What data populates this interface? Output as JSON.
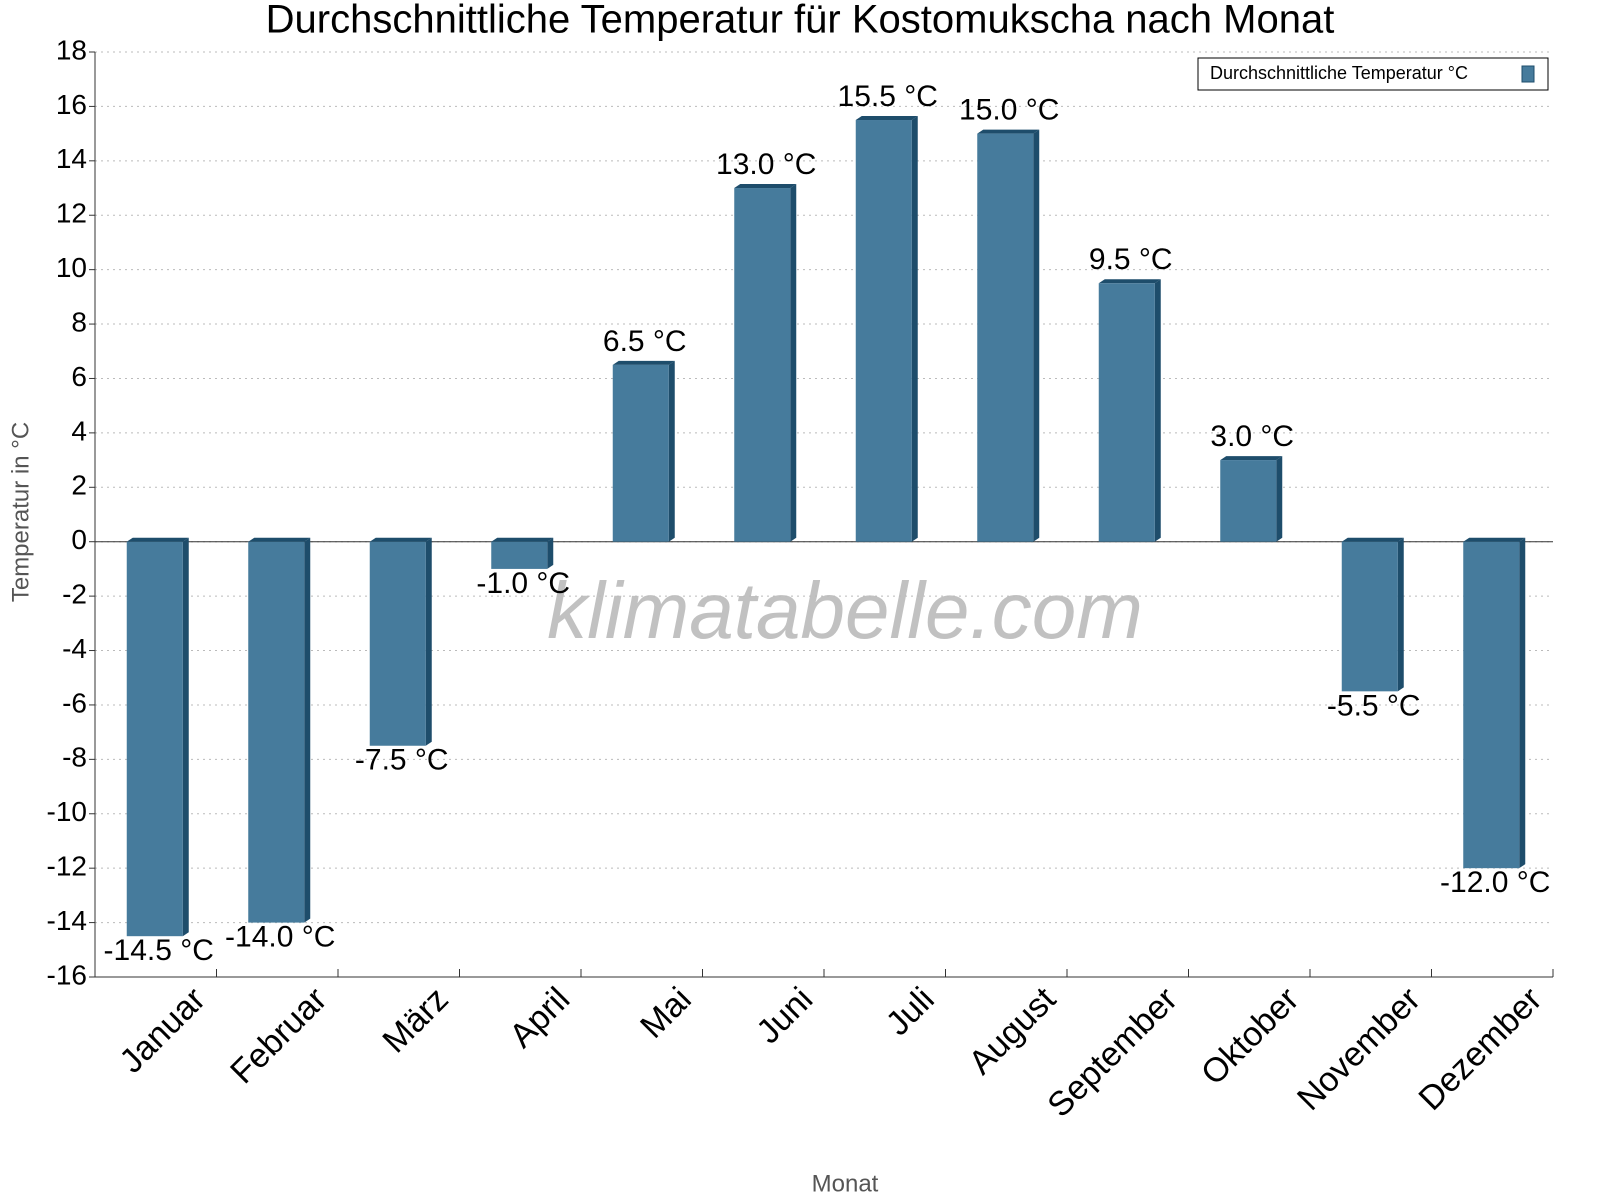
{
  "chart_data": {
    "type": "bar",
    "title": "Durchschnittliche Temperatur für Kostomukscha nach Monat",
    "x_label": "Monat",
    "y_label": "Temperatur in °C",
    "watermark": "klimatabelle.com",
    "categories": [
      "Januar",
      "Februar",
      "März",
      "April",
      "Mai",
      "Juni",
      "Juli",
      "August",
      "September",
      "Oktober",
      "November",
      "Dezember"
    ],
    "series": [
      {
        "name": "Durchschnittliche Temperatur °C",
        "color": "#467b9c",
        "values": [
          -14.5,
          -14.0,
          -7.5,
          -1.0,
          6.5,
          13.0,
          15.5,
          15.0,
          9.5,
          3.0,
          -5.5,
          -12.0
        ],
        "value_labels": [
          "-14.5 °C",
          "-14.0 °C",
          "-7.5 °C",
          "-1.0 °C",
          "6.5 °C",
          "13.0 °C",
          "15.5 °C",
          "15.0 °C",
          "9.5 °C",
          "3.0 °C",
          "-5.5 °C",
          "-12.0 °C"
        ]
      }
    ],
    "ylim": [
      -16,
      18
    ],
    "yticks": [
      -16,
      -14,
      -12,
      -10,
      -8,
      -6,
      -4,
      -2,
      0,
      2,
      4,
      6,
      8,
      10,
      12,
      14,
      16,
      18
    ],
    "grid": true,
    "legend": "top-right"
  }
}
